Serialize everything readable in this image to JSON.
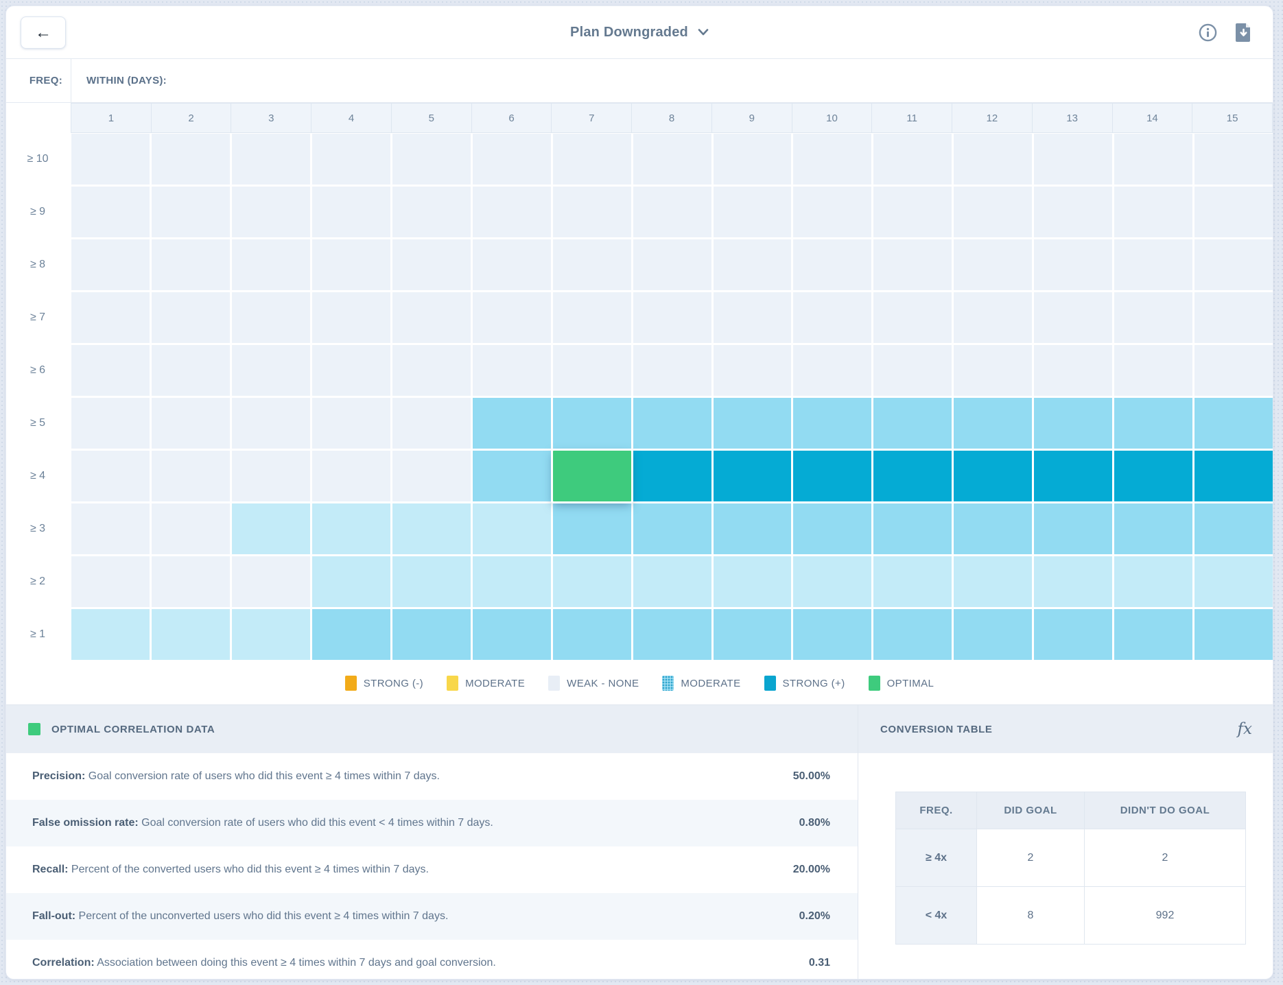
{
  "topbar": {
    "back_glyph": "←",
    "title": "Plan Downgraded"
  },
  "heatmap": {
    "freq_label": "FREQ:",
    "within_label": "WITHIN (DAYS):",
    "columns": [
      "1",
      "2",
      "3",
      "4",
      "5",
      "6",
      "7",
      "8",
      "9",
      "10",
      "11",
      "12",
      "13",
      "14",
      "15"
    ],
    "palette": {
      "n": "#ecf2f9",
      "l": "#c3ebf8",
      "m": "#92dbf2",
      "s": "#05abd4",
      "o": "#3ecb7d"
    },
    "rows": [
      {
        "label": "≥ 10",
        "cells": [
          "n",
          "n",
          "n",
          "n",
          "n",
          "n",
          "n",
          "n",
          "n",
          "n",
          "n",
          "n",
          "n",
          "n",
          "n"
        ]
      },
      {
        "label": "≥ 9",
        "cells": [
          "n",
          "n",
          "n",
          "n",
          "n",
          "n",
          "n",
          "n",
          "n",
          "n",
          "n",
          "n",
          "n",
          "n",
          "n"
        ]
      },
      {
        "label": "≥ 8",
        "cells": [
          "n",
          "n",
          "n",
          "n",
          "n",
          "n",
          "n",
          "n",
          "n",
          "n",
          "n",
          "n",
          "n",
          "n",
          "n"
        ]
      },
      {
        "label": "≥ 7",
        "cells": [
          "n",
          "n",
          "n",
          "n",
          "n",
          "n",
          "n",
          "n",
          "n",
          "n",
          "n",
          "n",
          "n",
          "n",
          "n"
        ]
      },
      {
        "label": "≥ 6",
        "cells": [
          "n",
          "n",
          "n",
          "n",
          "n",
          "n",
          "n",
          "n",
          "n",
          "n",
          "n",
          "n",
          "n",
          "n",
          "n"
        ]
      },
      {
        "label": "≥ 5",
        "cells": [
          "n",
          "n",
          "n",
          "n",
          "n",
          "m",
          "m",
          "m",
          "m",
          "m",
          "m",
          "m",
          "m",
          "m",
          "m"
        ]
      },
      {
        "label": "≥ 4",
        "cells": [
          "n",
          "n",
          "n",
          "n",
          "n",
          "m",
          "o",
          "s",
          "s",
          "s",
          "s",
          "s",
          "s",
          "s",
          "s"
        ]
      },
      {
        "label": "≥ 3",
        "cells": [
          "n",
          "n",
          "l",
          "l",
          "l",
          "l",
          "m",
          "m",
          "m",
          "m",
          "m",
          "m",
          "m",
          "m",
          "m"
        ]
      },
      {
        "label": "≥ 2",
        "cells": [
          "n",
          "n",
          "n",
          "l",
          "l",
          "l",
          "l",
          "l",
          "l",
          "l",
          "l",
          "l",
          "l",
          "l",
          "l"
        ]
      },
      {
        "label": "≥ 1",
        "cells": [
          "l",
          "l",
          "l",
          "m",
          "m",
          "m",
          "m",
          "m",
          "m",
          "m",
          "m",
          "m",
          "m",
          "m",
          "m"
        ]
      }
    ]
  },
  "legend": {
    "items": [
      {
        "label": "STRONG (-)",
        "color": "#f2ab19",
        "pattern": false
      },
      {
        "label": "MODERATE",
        "color": "#f8d74a",
        "pattern": false
      },
      {
        "label": "WEAK - NONE",
        "color": "#e8eef6",
        "pattern": false
      },
      {
        "label": "MODERATE",
        "color": "#9fdef2",
        "pattern": true
      },
      {
        "label": "STRONG (+)",
        "color": "#0aa5cf",
        "pattern": false
      },
      {
        "label": "OPTIMAL",
        "color": "#3ecb7d",
        "pattern": false
      }
    ]
  },
  "optimal_panel": {
    "title": "OPTIMAL CORRELATION DATA",
    "swatch_color": "#3ecb7d",
    "metrics": [
      {
        "label": "Precision:",
        "description": "Goal conversion rate of users who did this event ≥ 4 times within 7 days.",
        "value": "50.00%"
      },
      {
        "label": "False omission rate:",
        "description": "Goal conversion rate of users who did this event < 4 times within 7 days.",
        "value": "0.80%"
      },
      {
        "label": "Recall:",
        "description": "Percent of the converted users who did this event ≥ 4 times within 7 days.",
        "value": "20.00%"
      },
      {
        "label": "Fall-out:",
        "description": "Percent of the unconverted users who did this event ≥ 4 times within 7 days.",
        "value": "0.20%"
      },
      {
        "label": "Correlation:",
        "description": "Association between doing this event ≥ 4 times within 7 days and goal conversion.",
        "value": "0.31"
      }
    ]
  },
  "conversion_panel": {
    "title": "CONVERSION TABLE",
    "fx_label": "fx",
    "table": {
      "headers": [
        "FREQ.",
        "DID GOAL",
        "DIDN'T DO GOAL"
      ],
      "rows": [
        {
          "freq": "≥ 4x",
          "did_goal": "2",
          "didnt_do_goal": "2"
        },
        {
          "freq": "< 4x",
          "did_goal": "8",
          "didnt_do_goal": "992"
        }
      ]
    }
  }
}
